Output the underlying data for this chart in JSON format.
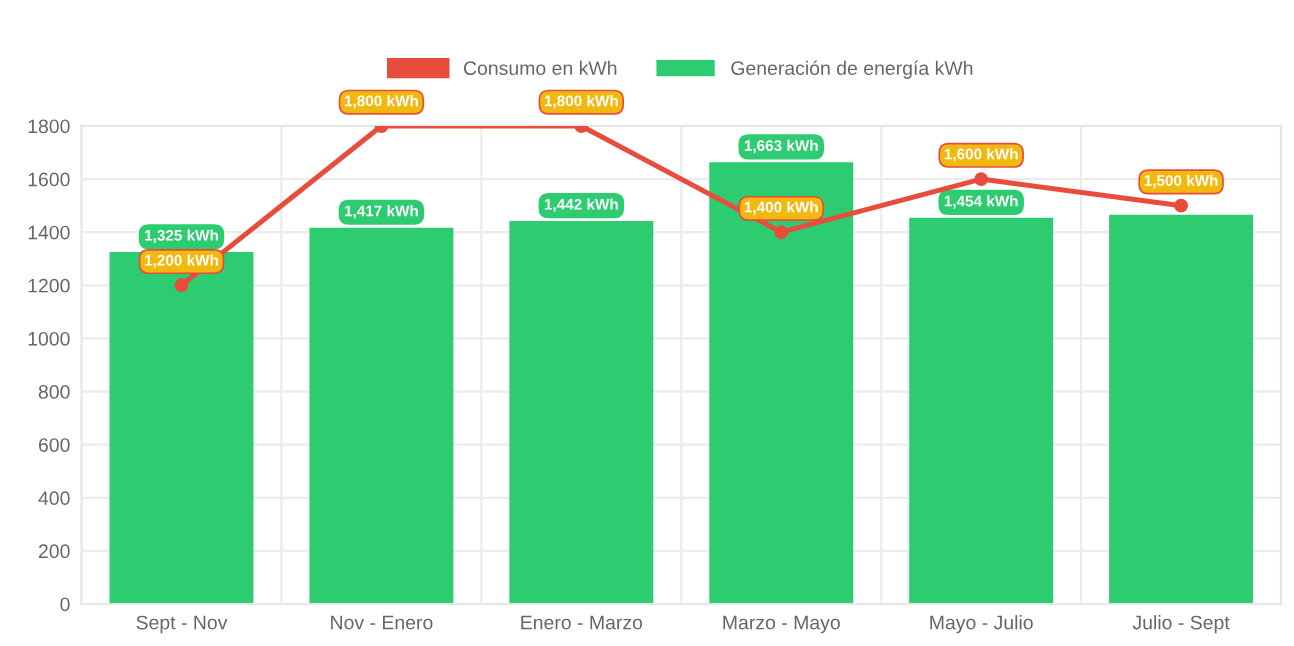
{
  "chart_data": {
    "type": "bar",
    "categories": [
      "Sept - Nov",
      "Nov - Enero",
      "Enero - Marzo",
      "Marzo - Mayo",
      "Mayo - Julio",
      "Julio - Sept"
    ],
    "series": [
      {
        "name": "Consumo en kWh",
        "type": "line",
        "color": "#e74c3c",
        "values": [
          1200,
          1800,
          1800,
          1400,
          1600,
          1500
        ],
        "value_labels": [
          "1,200 kWh",
          "1,800 kWh",
          "1,800 kWh",
          "1,400 kWh",
          "1,600 kWh",
          "1,500 kWh"
        ]
      },
      {
        "name": "Generación de energía kWh",
        "color": "#2ecc71",
        "values": [
          1325,
          1417,
          1442,
          1663,
          1454,
          1466
        ],
        "value_labels": [
          "1,325 kWh",
          "1,417 kWh",
          "1,442 kWh",
          "1,663 kWh",
          "1,454 kWh",
          null
        ]
      }
    ],
    "ylim": [
      0,
      1800
    ],
    "yticks": [
      0,
      200,
      400,
      600,
      800,
      1000,
      1200,
      1400,
      1600,
      1800
    ],
    "grid": true,
    "legend": "top",
    "marker": "circle"
  }
}
